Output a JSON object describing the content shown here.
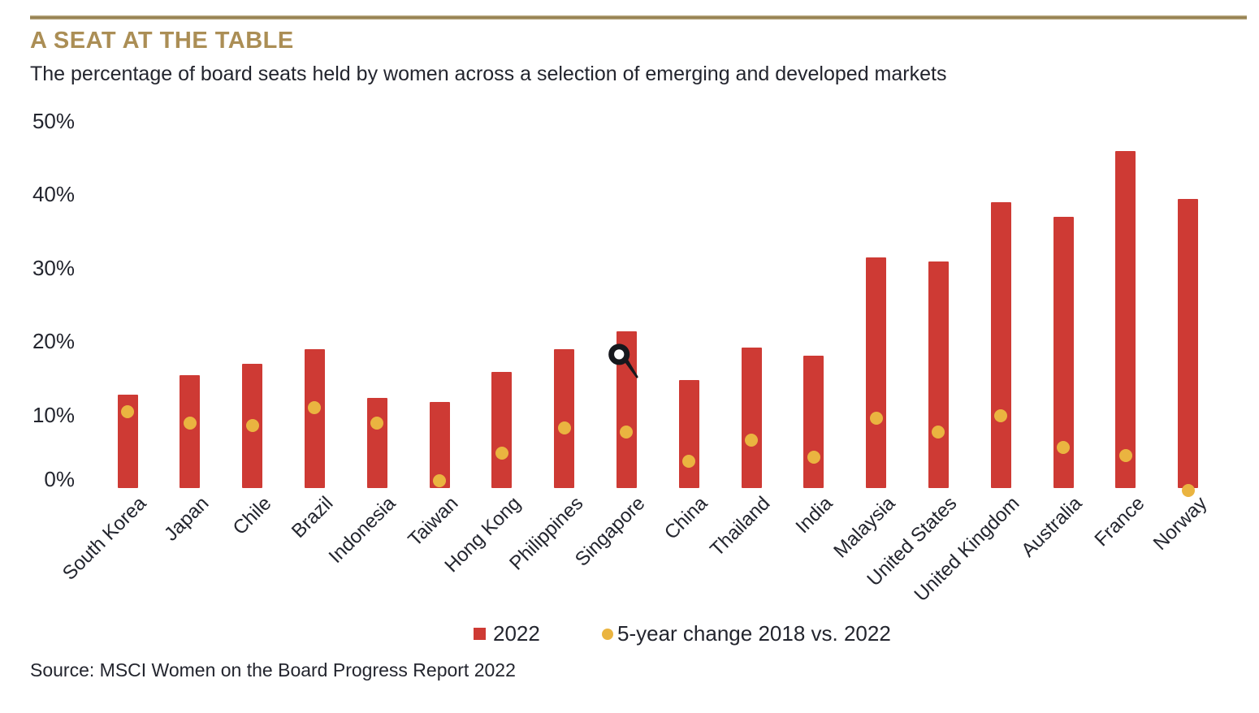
{
  "header": {
    "title": "A SEAT AT THE TABLE",
    "subtitle": "The percentage of board seats held by women across a selection of emerging and developed markets"
  },
  "chart_data": {
    "type": "bar",
    "title": "A SEAT AT THE TABLE",
    "subtitle": "The percentage of board seats held by women across a selection of emerging and developed markets",
    "categories": [
      "South Korea",
      "Japan",
      "Chile",
      "Brazil",
      "Indonesia",
      "Taiwan",
      "Hong Kong",
      "Philippines",
      "Singapore",
      "China",
      "Thailand",
      "India",
      "Malaysia",
      "United States",
      "United Kingdom",
      "Australia",
      "France",
      "Norway"
    ],
    "series": [
      {
        "name": "2022",
        "type": "bar",
        "color": "#ce3a34",
        "values": [
          12.7,
          15.4,
          16.9,
          18.9,
          12.3,
          11.7,
          15.8,
          18.9,
          21.4,
          14.7,
          19.1,
          18.0,
          31.4,
          30.9,
          38.9,
          36.9,
          45.9,
          39.4
        ]
      },
      {
        "name": "5-year change 2018 vs. 2022",
        "type": "dot",
        "color": "#eab440",
        "values": [
          10.4,
          8.8,
          8.5,
          10.9,
          8.8,
          1.0,
          4.8,
          8.2,
          7.6,
          3.6,
          6.5,
          4.2,
          9.5,
          7.6,
          9.8,
          5.5,
          4.4,
          -0.3
        ]
      }
    ],
    "xlabel": "",
    "ylabel": "",
    "ylim": [
      0,
      50
    ],
    "yticks": [
      0,
      10,
      20,
      30,
      40,
      50
    ],
    "ytick_labels": [
      "0%",
      "10%",
      "20%",
      "30%",
      "40%",
      "50%"
    ],
    "grid": false,
    "legend_position": "bottom"
  },
  "source": "Source: MSCI Women on the Board Progress Report 2022",
  "colors": {
    "bar_red": "#ce3a34",
    "dot_gold": "#eab440",
    "title_gold": "#ab8e55",
    "rule_gold": "#8f7b4b",
    "text": "#23252e"
  },
  "icons": {
    "cursor": "pen-cursor-artifact"
  }
}
